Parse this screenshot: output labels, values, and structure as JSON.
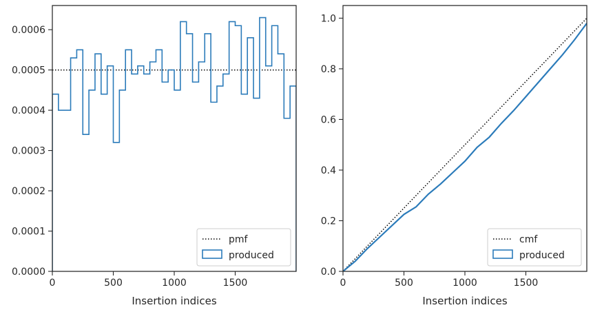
{
  "chart_data": [
    {
      "type": "histogram-step",
      "xlabel": "Insertion indices",
      "ylabel": "",
      "xlim": [
        0,
        2000
      ],
      "ylim": [
        0,
        0.00066
      ],
      "xticks": [
        0,
        500,
        1000,
        1500
      ],
      "xtick_labels": [
        "0",
        "500",
        "1000",
        "1500"
      ],
      "yticks": [
        0,
        0.0001,
        0.0002,
        0.0003,
        0.0004,
        0.0005,
        0.0006
      ],
      "ytick_labels": [
        "0.0000",
        "0.0001",
        "0.0002",
        "0.0003",
        "0.0004",
        "0.0005",
        "0.0006"
      ],
      "legend_position": "lower-right",
      "reference_line": {
        "name": "pmf",
        "style": "dotted",
        "color": "#000000",
        "y": 0.0005
      },
      "series": [
        {
          "name": "produced",
          "color": "#2b7bba",
          "bin_width": 50,
          "values": [
            0.00044,
            0.0004,
            0.0004,
            0.00053,
            0.00055,
            0.00034,
            0.00045,
            0.00054,
            0.00044,
            0.00051,
            0.00032,
            0.00045,
            0.00055,
            0.00049,
            0.00051,
            0.00049,
            0.00052,
            0.00055,
            0.00047,
            0.0005,
            0.00045,
            0.00062,
            0.00059,
            0.00047,
            0.00052,
            0.00059,
            0.00042,
            0.00046,
            0.00049,
            0.00062,
            0.00061,
            0.00044,
            0.00058,
            0.00043,
            0.00063,
            0.00051,
            0.00061,
            0.00054,
            0.00038,
            0.00046
          ]
        }
      ]
    },
    {
      "type": "line",
      "xlabel": "Insertion indices",
      "ylabel": "",
      "xlim": [
        0,
        2000
      ],
      "ylim": [
        0,
        1.05
      ],
      "xticks": [
        0,
        500,
        1000,
        1500
      ],
      "xtick_labels": [
        "0",
        "500",
        "1000",
        "1500"
      ],
      "yticks": [
        0,
        0.2,
        0.4,
        0.6,
        0.8,
        1.0
      ],
      "ytick_labels": [
        "0.0",
        "0.2",
        "0.4",
        "0.6",
        "0.8",
        "1.0"
      ],
      "legend_position": "lower-right",
      "reference_line": {
        "name": "cmf",
        "style": "dotted",
        "color": "#000000",
        "from": [
          0,
          0
        ],
        "to": [
          2000,
          1.0
        ]
      },
      "series": [
        {
          "name": "produced",
          "color": "#2b7bba",
          "x": [
            0,
            100,
            200,
            300,
            400,
            500,
            600,
            700,
            800,
            900,
            1000,
            1100,
            1200,
            1300,
            1400,
            1500,
            1600,
            1700,
            1800,
            1900,
            2000
          ],
          "y": [
            0,
            0.04,
            0.09,
            0.135,
            0.18,
            0.225,
            0.255,
            0.305,
            0.345,
            0.39,
            0.435,
            0.49,
            0.53,
            0.585,
            0.635,
            0.69,
            0.745,
            0.8,
            0.855,
            0.915,
            0.98
          ]
        }
      ]
    }
  ]
}
